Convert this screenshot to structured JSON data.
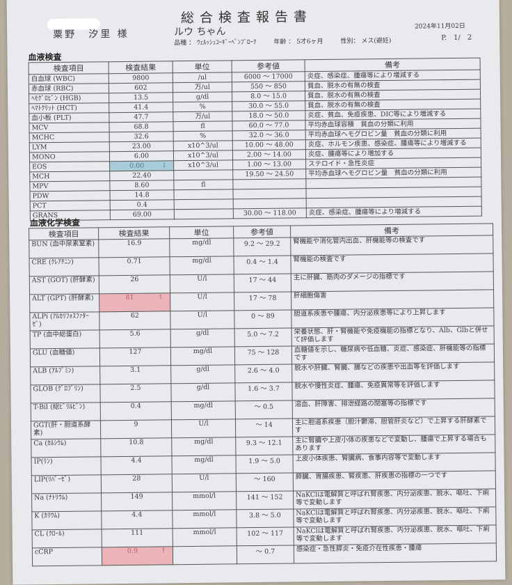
{
  "header": {
    "title": "総合検査報告書",
    "owner": "粟野　汐里 様",
    "pet": "ルウ ちゃん",
    "date": "2024年11月02日",
    "page": "P.　1/　2",
    "breed": "品種 ： ｳｪﾙｯｼｭｺｰｷﾞｰﾍﾟﾝﾌﾞﾛｰｸ",
    "age": "年齢 ： 5才6ヶ月",
    "sex": "性別： メス(避妊)"
  },
  "blood": {
    "section": "血液検査",
    "columns": [
      "検査項目",
      "検査結果",
      "単位",
      "参考値",
      "備考"
    ],
    "rows": [
      {
        "item": "白血球 (WBC)",
        "result": "9800",
        "flag": "",
        "unit": "/ul",
        "range": "6000 ～ 17000",
        "note": "炎症、感染症、腫瘍等により増減する"
      },
      {
        "item": "赤血球 (RBC)",
        "result": "602",
        "flag": "",
        "unit": "万/ul",
        "range": "550 ～ 850",
        "note": "貧血、脱水の有無の検査"
      },
      {
        "item": "ﾍﾓｸﾞﾛﾋﾞﾝ (HGB)",
        "result": "13.5",
        "flag": "",
        "unit": "g/dl",
        "range": "8.0 ～ 15.0",
        "note": "貧血、脱水の有無の検査"
      },
      {
        "item": "ﾍﾏﾄｸﾘｯﾄ (HCT)",
        "result": "41.4",
        "flag": "",
        "unit": "%",
        "range": "30.0 ～ 55.0",
        "note": "貧血、脱水の有無の検査"
      },
      {
        "item": "血小板 (PLT)",
        "result": "47.7",
        "flag": "",
        "unit": "万/ul",
        "range": "18.0 ～ 50.0",
        "note": "炎症、貧血、免疫疾患、DIC等により増減する"
      },
      {
        "item": "MCV",
        "result": "68.8",
        "flag": "",
        "unit": "fl",
        "range": "60.0 ～ 77.0",
        "note": "平均赤血球容積　貧血の分類に利用"
      },
      {
        "item": "MCHC",
        "result": "32.6",
        "flag": "",
        "unit": "%",
        "range": "32.0 ～ 36.0",
        "note": "平均赤血球ヘモグロビン量　貧血の分類に利用"
      },
      {
        "item": "LYM",
        "result": "23.00",
        "flag": "",
        "unit": "x10^3/ul",
        "range": "10.00 ～ 48.00",
        "note": "炎症、ホルモン疾患、感染症、腫瘍等により増減する"
      },
      {
        "item": "MONO",
        "result": "6.00",
        "flag": "",
        "unit": "x10^3/ul",
        "range": "2.00 ～ 14.00",
        "note": "炎症、腫瘍等により増加する"
      },
      {
        "item": "EOS",
        "result": "0.00",
        "flag": "↓",
        "unit": "x10^3/ul",
        "range": "1.00 ～ 13.00",
        "note": "ステロイド・急性炎症"
      },
      {
        "item": "MCH",
        "result": "22.40",
        "flag": "",
        "unit": "",
        "range": "19.50 ～ 24.50",
        "note": "平均赤血球ヘモグロビン量　貧血の分類に利用"
      },
      {
        "item": "MPV",
        "result": "8.60",
        "flag": "",
        "unit": "fl",
        "range": "",
        "note": ""
      },
      {
        "item": "PDW",
        "result": "14.8",
        "flag": "",
        "unit": "",
        "range": "",
        "note": ""
      },
      {
        "item": "PCT",
        "result": "0.4",
        "flag": "",
        "unit": "",
        "range": "",
        "note": ""
      },
      {
        "item": "GRANS",
        "result": "69.00",
        "flag": "",
        "unit": "",
        "range": "30.00 ～ 118.00",
        "note": "炎症、感染症、腫瘍等により増減する"
      }
    ]
  },
  "chem": {
    "section": "血液化学検査",
    "columns": [
      "検査項目",
      "検査結果",
      "単位",
      "参考値",
      "備考"
    ],
    "rows": [
      {
        "item": "BUN (血中尿素窒素)",
        "result": "16.9",
        "flag": "",
        "unit": "mg/dl",
        "range": "9.2 ～ 29.2",
        "note": "腎機能や消化管内出血、肝機能等の検査です"
      },
      {
        "item": "CRE (ｸﾚｱﾁﾆﾝ)",
        "result": "0.71",
        "flag": "",
        "unit": "mg/dl",
        "range": "0.4 ～ 1.4",
        "note": "腎機能の検査です"
      },
      {
        "item": "AST (GOT) (肝酵素)",
        "result": "26",
        "flag": "",
        "unit": "U/l",
        "range": "17 ～ 44",
        "note": "主に肝臓、筋肉のダメージの指標です"
      },
      {
        "item": "ALT (GPT) (肝酵素)",
        "result": "81",
        "flag": "↑",
        "unit": "U/l",
        "range": "17 ～ 78",
        "note": "肝細胞傷害"
      },
      {
        "item": "ALPi (ｱﾙｶﾘﾌｫｽﾌｧﾀｰｾﾞ)",
        "result": "62",
        "flag": "",
        "unit": "U/l",
        "range": "0 ～ 89",
        "note": "胆道系疾患や腫瘍、内分泌疾患等により上昇します"
      },
      {
        "item": "TP (血中総蛋白)",
        "result": "5.6",
        "flag": "",
        "unit": "g/dl",
        "range": "5.0 ～ 7.2",
        "note": "栄養状態、肝・腎機能や免疫機能の指標となり、Alb、Glbと併せて評価します"
      },
      {
        "item": "GLU (血糖値)",
        "result": "127",
        "flag": "",
        "unit": "mg/dl",
        "range": "75 ～ 128",
        "note": "血糖値を示し、糖尿病や低血糖、炎症、感染症、肝機能等の指標です"
      },
      {
        "item": "ALB (ｱﾙﾌﾞﾐﾝ)",
        "result": "3.1",
        "flag": "",
        "unit": "g/dl",
        "range": "2.6 ～ 4.0",
        "note": "脱水や肝臓、腎臓、腸などの疾患や出血等を評価します"
      },
      {
        "item": "GLOB (ｸﾞﾛﾌﾞﾘﾝ)",
        "result": "2.5",
        "flag": "",
        "unit": "g/dl",
        "range": "1.6 ～ 3.7",
        "note": "脱水や慢性炎症、腫瘍、免疫異常等を評価します"
      },
      {
        "item": "T-Bil (総ﾋﾞﾘﾙﾋﾞﾝ)",
        "result": "0.4",
        "flag": "",
        "unit": "mg/dl",
        "range": "～ 0.5",
        "note": "溶血、肝障害、排泄経路の閉塞等の指標です"
      },
      {
        "item": "GGT(肝・胆道系酵素)",
        "result": "9",
        "flag": "",
        "unit": "U/l",
        "range": "～ 14",
        "note": "主に胆道系疾患（胆汁鬱滞、胆管肝炎など）で上昇する肝酵素です"
      },
      {
        "item": "Ca (ｶﾙｼｳﾑ)",
        "result": "10.8",
        "flag": "",
        "unit": "mg/dl",
        "range": "9.3 ～ 12.1",
        "note": "主に腎臓や上皮小体の疾患などで変動し、腫瘍で上昇する場合もあります"
      },
      {
        "item": "IP(ﾘﾝ)",
        "result": "4.4",
        "flag": "",
        "unit": "mg/dl",
        "range": "1.9 ～ 5.0",
        "note": "上皮小体疾患、腎臓病、食事内容等で変動します"
      },
      {
        "item": "LIP(ﾘﾊﾟｰｾﾞ)",
        "result": "28",
        "flag": "",
        "unit": "U/l",
        "range": "～ 160",
        "note": "膵臓、胃腸疾患、腎疾患、肝疾患の指標の一つです"
      },
      {
        "item": "Na (ﾅﾄﾘｳﾑ)",
        "result": "149",
        "flag": "",
        "unit": "mmol/l",
        "range": "141 ～ 152",
        "note": "NaKClは電解質と呼ばれ腎疾患、内分泌疾患、脱水、嘔吐、下痢等で変動します"
      },
      {
        "item": "K (ｶﾘｳﾑ)",
        "result": "4.4",
        "flag": "",
        "unit": "mmol/l",
        "range": "3.8 ～ 5.0",
        "note": "NaKClは電解質と呼ばれ腎疾患、内分泌疾患、脱水、嘔吐、下痢等で変動します"
      },
      {
        "item": "CL (ｸﾛｰﾙ)",
        "result": "111",
        "flag": "",
        "unit": "mmol/l",
        "range": "102 ～ 117",
        "note": "NaKClは電解質と呼ばれ腎疾患、内分泌疾患、脱水、嘔吐、下痢等で変動します"
      },
      {
        "item": "cCRP",
        "result": "0.9",
        "flag": "↑",
        "unit": "",
        "range": "～ 0.7",
        "note": "感染症・急性膵炎・免疫介在性疾患・腫瘍"
      }
    ]
  },
  "colors": {
    "low_highlight": "#a9cdd8",
    "high_highlight": "#eab4b8"
  }
}
